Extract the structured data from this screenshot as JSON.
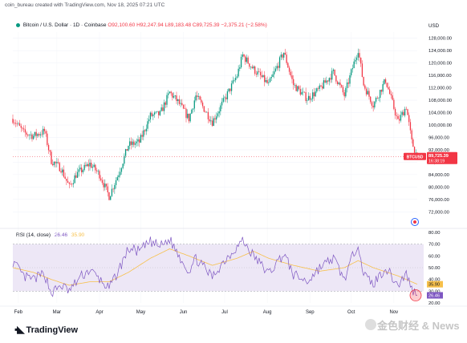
{
  "header": {
    "text": "coin_bureau created with TradingView.com, Nov 18, 2025 07:21 UTC"
  },
  "symbol": {
    "title": "Bitcoin / U.S. Dollar · 1D · Coinbase",
    "open": "O92,100.60",
    "high": "H92,247.94",
    "low": "L89,183.48",
    "close": "C89,725.39",
    "change": "−2,375.21 (−2.58%)"
  },
  "price_axis": {
    "currency": "USD",
    "last_price_tag": "BTCUSD",
    "last_price": "89,725.39",
    "countdown": "16:38:19"
  },
  "rsi": {
    "label": "RSI (14, close)",
    "value": "26.46",
    "ma_value": "35.90"
  },
  "logo": {
    "text": "TradingView"
  },
  "watermark": {
    "text": "金色财经 & News"
  },
  "colors": {
    "up": "#089981",
    "down": "#f23645",
    "rsi_line": "#7e57c2",
    "rsi_ma": "#f7c04a",
    "rsi_band": "#ede7f6",
    "last_tag": "#f23645"
  },
  "chart_data": [
    {
      "type": "candlestick",
      "title": "Bitcoin / U.S. Dollar · 1D · Coinbase",
      "y_axis_unit": "USD",
      "ylim": [
        70000,
        130000
      ],
      "y_ticks": [
        "128,000.00",
        "124,000.00",
        "120,000.00",
        "116,000.00",
        "112,000.00",
        "108,000.00",
        "104,000.00",
        "100,000.00",
        "96,000.00",
        "92,000.00",
        "88,000.00",
        "84,000.00",
        "80,000.00",
        "76,000.00",
        "72,000.00"
      ],
      "x_ticks": [
        "Feb",
        "Mar",
        "Apr",
        "May",
        "Jun",
        "Jul",
        "Aug",
        "Sep",
        "Oct",
        "Nov"
      ],
      "x_start": "2025-01-28",
      "x_end": "2025-11-18",
      "close_path": [
        [
          "2025-01-28",
          102000
        ],
        [
          "2025-02-05",
          97500
        ],
        [
          "2025-02-12",
          96500
        ],
        [
          "2025-02-20",
          98000
        ],
        [
          "2025-02-25",
          88500
        ],
        [
          "2025-03-04",
          86000
        ],
        [
          "2025-03-10",
          80000
        ],
        [
          "2025-03-15",
          84000
        ],
        [
          "2025-03-25",
          87500
        ],
        [
          "2025-04-01",
          84000
        ],
        [
          "2025-04-08",
          77000
        ],
        [
          "2025-04-15",
          84500
        ],
        [
          "2025-04-22",
          93500
        ],
        [
          "2025-04-30",
          94500
        ],
        [
          "2025-05-08",
          103000
        ],
        [
          "2025-05-15",
          103500
        ],
        [
          "2025-05-22",
          110500
        ],
        [
          "2025-05-28",
          107500
        ],
        [
          "2025-06-05",
          102000
        ],
        [
          "2025-06-10",
          109500
        ],
        [
          "2025-06-22",
          101000
        ],
        [
          "2025-06-30",
          107500
        ],
        [
          "2025-07-10",
          116000
        ],
        [
          "2025-07-14",
          122500
        ],
        [
          "2025-07-22",
          118000
        ],
        [
          "2025-08-02",
          113000
        ],
        [
          "2025-08-13",
          123500
        ],
        [
          "2025-08-20",
          113000
        ],
        [
          "2025-08-30",
          108500
        ],
        [
          "2025-09-08",
          111500
        ],
        [
          "2025-09-18",
          117000
        ],
        [
          "2025-09-26",
          109500
        ],
        [
          "2025-10-06",
          124500
        ],
        [
          "2025-10-10",
          113000
        ],
        [
          "2025-10-17",
          106500
        ],
        [
          "2025-10-26",
          114500
        ],
        [
          "2025-11-04",
          101000
        ],
        [
          "2025-11-10",
          106000
        ],
        [
          "2025-11-14",
          94500
        ],
        [
          "2025-11-18",
          89725
        ]
      ]
    },
    {
      "type": "line",
      "title": "RSI (14, close)",
      "ylim": [
        20,
        80
      ],
      "y_ticks": [
        "80.00",
        "70.00",
        "60.00",
        "50.00",
        "40.00",
        "30.00",
        "20.00"
      ],
      "band": [
        30,
        70
      ],
      "series": [
        {
          "name": "RSI",
          "values": [
            [
              "2025-01-28",
              55
            ],
            [
              "2025-02-05",
              42
            ],
            [
              "2025-02-12",
              40
            ],
            [
              "2025-02-20",
              45
            ],
            [
              "2025-02-25",
              28
            ],
            [
              "2025-03-04",
              35
            ],
            [
              "2025-03-10",
              30
            ],
            [
              "2025-03-18",
              42
            ],
            [
              "2025-03-25",
              48
            ],
            [
              "2025-04-01",
              40
            ],
            [
              "2025-04-08",
              32
            ],
            [
              "2025-04-15",
              48
            ],
            [
              "2025-04-22",
              66
            ],
            [
              "2025-04-30",
              64
            ],
            [
              "2025-05-08",
              72
            ],
            [
              "2025-05-15",
              68
            ],
            [
              "2025-05-22",
              74
            ],
            [
              "2025-05-28",
              62
            ],
            [
              "2025-06-05",
              47
            ],
            [
              "2025-06-10",
              58
            ],
            [
              "2025-06-22",
              42
            ],
            [
              "2025-06-30",
              55
            ],
            [
              "2025-07-10",
              68
            ],
            [
              "2025-07-14",
              73
            ],
            [
              "2025-07-22",
              60
            ],
            [
              "2025-08-02",
              45
            ],
            [
              "2025-08-13",
              62
            ],
            [
              "2025-08-20",
              44
            ],
            [
              "2025-08-30",
              38
            ],
            [
              "2025-09-08",
              50
            ],
            [
              "2025-09-18",
              58
            ],
            [
              "2025-09-26",
              40
            ],
            [
              "2025-10-06",
              72
            ],
            [
              "2025-10-10",
              44
            ],
            [
              "2025-10-17",
              36
            ],
            [
              "2025-10-26",
              50
            ],
            [
              "2025-11-04",
              35
            ],
            [
              "2025-11-10",
              45
            ],
            [
              "2025-11-14",
              32
            ],
            [
              "2025-11-18",
              26.46
            ]
          ]
        },
        {
          "name": "RSI MA",
          "values": [
            [
              "2025-01-28",
              50
            ],
            [
              "2025-02-12",
              46
            ],
            [
              "2025-02-25",
              40
            ],
            [
              "2025-03-10",
              35
            ],
            [
              "2025-03-25",
              38
            ],
            [
              "2025-04-08",
              38
            ],
            [
              "2025-04-22",
              46
            ],
            [
              "2025-05-08",
              58
            ],
            [
              "2025-05-22",
              66
            ],
            [
              "2025-06-05",
              60
            ],
            [
              "2025-06-22",
              52
            ],
            [
              "2025-07-10",
              58
            ],
            [
              "2025-07-22",
              64
            ],
            [
              "2025-08-02",
              58
            ],
            [
              "2025-08-20",
              52
            ],
            [
              "2025-09-08",
              47
            ],
            [
              "2025-09-26",
              50
            ],
            [
              "2025-10-06",
              56
            ],
            [
              "2025-10-17",
              50
            ],
            [
              "2025-11-04",
              43
            ],
            [
              "2025-11-18",
              35.9
            ]
          ]
        }
      ]
    }
  ]
}
